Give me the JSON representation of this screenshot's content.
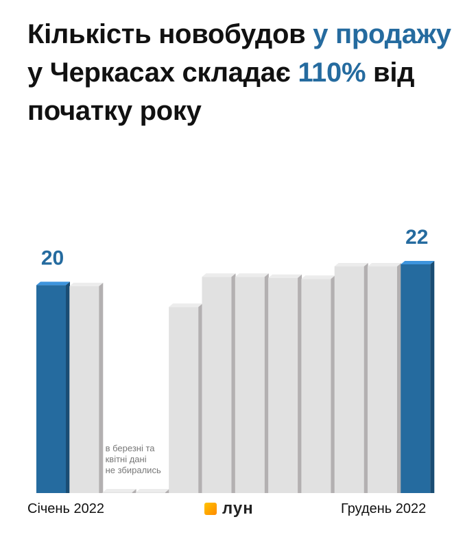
{
  "title": {
    "part1": "Кількість новобудов ",
    "part2": "у продажу",
    "part3": " у Черкасах складає ",
    "part4": "110%",
    "part5": " від початку року"
  },
  "colors": {
    "accent": "#256b9f",
    "bar_highlight_front": "#256b9f",
    "bar_highlight_side": "#1a4d74",
    "bar_highlight_top": "#3d94dd",
    "bar_front": "#e1e1e1",
    "bar_side": "#b3b0b1",
    "bar_top": "#ececec"
  },
  "chart_data": {
    "type": "bar",
    "categories": [
      "Січень 2022",
      "",
      "",
      "",
      "",
      "",
      "",
      "",
      "",
      "",
      "",
      "Грудень 2022"
    ],
    "values": [
      20,
      19.9,
      0,
      0,
      17.9,
      20.8,
      20.8,
      20.7,
      20.6,
      21.8,
      21.8,
      22
    ],
    "highlight": [
      true,
      false,
      false,
      false,
      false,
      false,
      false,
      false,
      false,
      false,
      false,
      true
    ],
    "data_labels": [
      "20",
      "",
      "",
      "",
      "",
      "",
      "",
      "",
      "",
      "",
      "",
      "22"
    ],
    "annotation": "в березні та квітні дані не збирались",
    "ylim": [
      0,
      22
    ]
  },
  "footer": {
    "left_label": "Січень 2022",
    "right_label": "Грудень 2022",
    "logo_text": "лун"
  }
}
